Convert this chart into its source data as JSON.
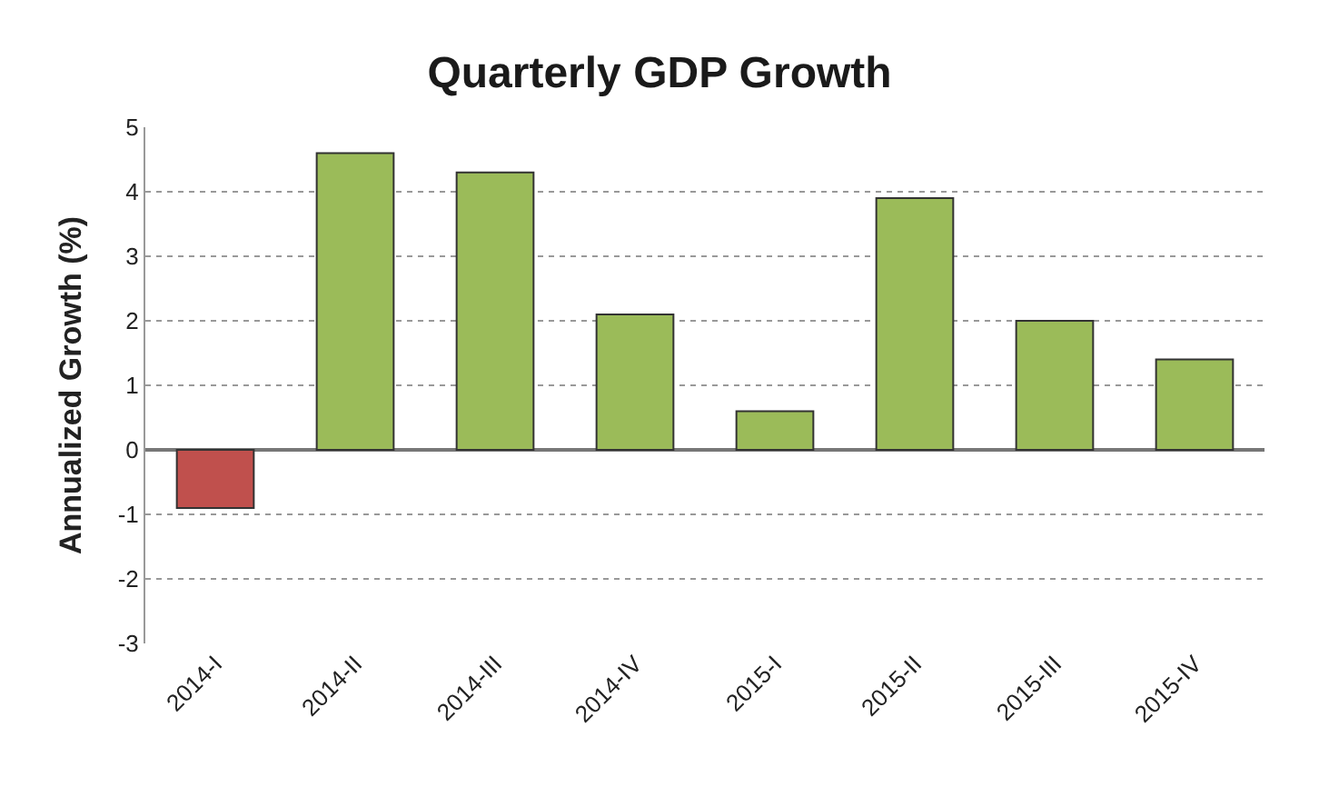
{
  "chart_data": {
    "type": "bar",
    "title": "Quarterly GDP Growth",
    "ylabel": "Annualized Growth (%)",
    "categories": [
      "2014-I",
      "2014-II",
      "2014-III",
      "2014-IV",
      "2015-I",
      "2015-II",
      "2015-III",
      "2015-IV"
    ],
    "values": [
      -0.9,
      4.6,
      4.3,
      2.1,
      0.6,
      3.9,
      2.0,
      1.4
    ],
    "colors": [
      "#c0504d",
      "#9bbb59",
      "#9bbb59",
      "#9bbb59",
      "#9bbb59",
      "#9bbb59",
      "#9bbb59",
      "#9bbb59"
    ],
    "ylim": [
      -3,
      5
    ],
    "yticks": [
      -3,
      -2,
      -1,
      0,
      1,
      2,
      3,
      4,
      5
    ],
    "grid": "y",
    "legend": false
  }
}
